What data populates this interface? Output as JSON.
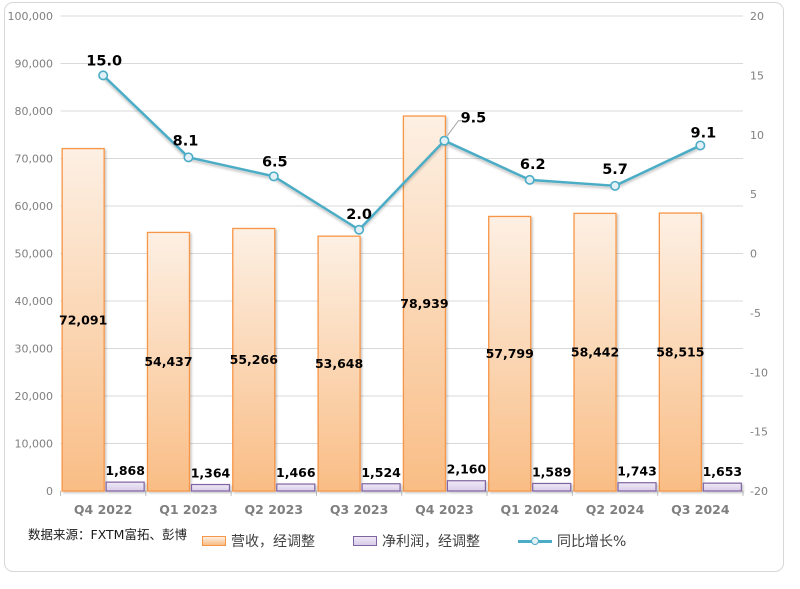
{
  "chart_data": {
    "type": "combo",
    "categories": [
      "Q4 2022",
      "Q1 2023",
      "Q2 2023",
      "Q3 2023",
      "Q4 2023",
      "Q1 2024",
      "Q2 2024",
      "Q3 2024"
    ],
    "series": [
      {
        "name": "营收，经调整",
        "type": "bar",
        "axis": "left",
        "values": [
          72091,
          54437,
          55266,
          53648,
          78939,
          57799,
          58442,
          58515
        ],
        "labels": [
          "72,091",
          "54,437",
          "55,266",
          "53,648",
          "78,939",
          "57,799",
          "58,442",
          "58,515"
        ],
        "color": "#F79646"
      },
      {
        "name": "净利润，经调整",
        "type": "bar",
        "axis": "left",
        "values": [
          1868,
          1364,
          1466,
          1524,
          2160,
          1589,
          1743,
          1653
        ],
        "labels": [
          "1,868",
          "1,364",
          "1,466",
          "1,524",
          "2,160",
          "1,589",
          "1,743",
          "1,653"
        ],
        "color": "#8064A2"
      },
      {
        "name": "同比增长%",
        "type": "line",
        "axis": "right",
        "values": [
          15.0,
          8.1,
          6.5,
          2.0,
          9.5,
          6.2,
          5.7,
          9.1
        ],
        "labels": [
          "15.0",
          "8.1",
          "6.5",
          "2.0",
          "9.5",
          "6.2",
          "5.7",
          "9.1"
        ],
        "color": "#4BACC6"
      }
    ],
    "left_axis": {
      "min": 0,
      "max": 100000,
      "step": 10000,
      "tick_labels": [
        "0",
        "10,000",
        "20,000",
        "30,000",
        "40,000",
        "50,000",
        "60,000",
        "70,000",
        "80,000",
        "90,000",
        "100,000"
      ]
    },
    "right_axis": {
      "min": -20,
      "max": 20,
      "step": 5,
      "tick_labels": [
        "-20",
        "-15",
        "-10",
        "-5",
        "0",
        "5",
        "10",
        "15",
        "20"
      ]
    },
    "grid": true,
    "legend_position": "bottom",
    "source": "数据来源：FXTM富拓、彭博"
  }
}
